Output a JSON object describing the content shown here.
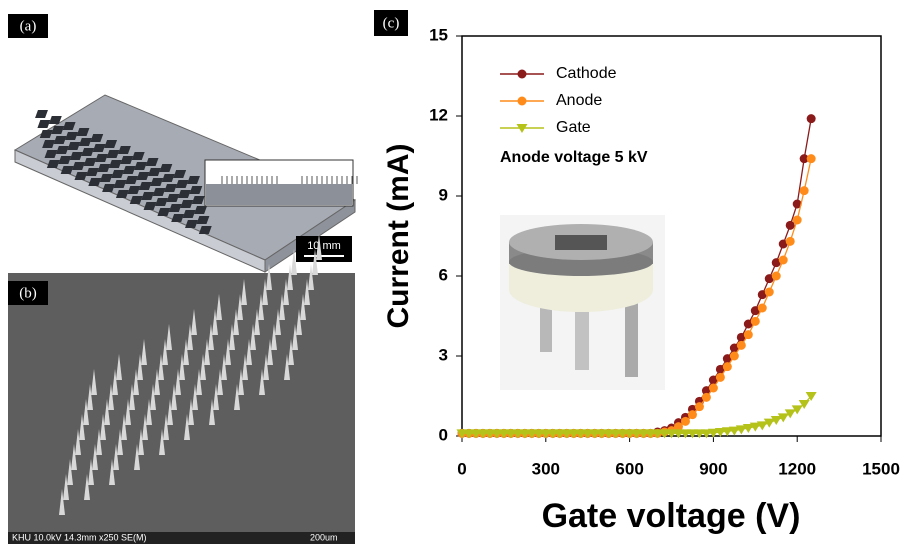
{
  "panels": {
    "a_label": "(a)",
    "b_label": "(b)",
    "c_label": "(c)",
    "scale_bar": "10 mm",
    "sem_info": "KHU 10.0kV 14.3mm x250 SE(M)",
    "sem_scale": "200um"
  },
  "chart_data": {
    "type": "line",
    "x_label": "Gate voltage (V)",
    "y_label": "Current (mA)",
    "annotation": "Anode voltage 5 kV",
    "xlim": [
      0,
      1500
    ],
    "xticks": [
      0,
      300,
      600,
      900,
      1200,
      1500
    ],
    "ylim": [
      0,
      15
    ],
    "yticks": [
      0,
      3,
      6,
      9,
      12,
      15
    ],
    "legend": "upper left",
    "x": [
      0,
      25,
      50,
      75,
      100,
      125,
      150,
      175,
      200,
      225,
      250,
      275,
      300,
      325,
      350,
      375,
      400,
      425,
      450,
      475,
      500,
      525,
      550,
      575,
      600,
      625,
      650,
      675,
      700,
      725,
      750,
      775,
      800,
      825,
      850,
      875,
      900,
      925,
      950,
      975,
      1000,
      1025,
      1050,
      1075,
      1100,
      1125,
      1150,
      1175,
      1200,
      1225,
      1250
    ],
    "series": [
      {
        "name": "Cathode",
        "color": "#8b1a1a",
        "marker": "circle",
        "values": [
          0.1,
          0.1,
          0.1,
          0.1,
          0.1,
          0.1,
          0.1,
          0.1,
          0.1,
          0.1,
          0.1,
          0.1,
          0.1,
          0.1,
          0.1,
          0.1,
          0.1,
          0.1,
          0.1,
          0.1,
          0.1,
          0.1,
          0.1,
          0.1,
          0.1,
          0.1,
          0.1,
          0.1,
          0.15,
          0.2,
          0.3,
          0.5,
          0.7,
          1.0,
          1.3,
          1.7,
          2.1,
          2.5,
          2.9,
          3.3,
          3.7,
          4.2,
          4.7,
          5.3,
          5.9,
          6.5,
          7.2,
          7.9,
          8.7,
          10.4,
          11.9
        ]
      },
      {
        "name": "Anode",
        "color": "#ff8c1a",
        "marker": "circle",
        "values": [
          0.1,
          0.1,
          0.1,
          0.1,
          0.1,
          0.1,
          0.1,
          0.1,
          0.1,
          0.1,
          0.1,
          0.1,
          0.1,
          0.1,
          0.1,
          0.1,
          0.1,
          0.1,
          0.1,
          0.1,
          0.1,
          0.1,
          0.1,
          0.1,
          0.1,
          0.1,
          0.1,
          0.1,
          0.1,
          0.15,
          0.2,
          0.35,
          0.55,
          0.8,
          1.1,
          1.45,
          1.8,
          2.2,
          2.6,
          3.0,
          3.4,
          3.8,
          4.3,
          4.8,
          5.4,
          6.0,
          6.6,
          7.3,
          8.1,
          9.2,
          10.4
        ]
      },
      {
        "name": "Gate",
        "color": "#b5c21a",
        "marker": "triangle-down",
        "values": [
          0.1,
          0.1,
          0.1,
          0.1,
          0.1,
          0.1,
          0.1,
          0.1,
          0.1,
          0.1,
          0.1,
          0.1,
          0.1,
          0.1,
          0.1,
          0.1,
          0.1,
          0.1,
          0.1,
          0.1,
          0.1,
          0.1,
          0.1,
          0.1,
          0.1,
          0.1,
          0.1,
          0.1,
          0.1,
          0.1,
          0.1,
          0.1,
          0.1,
          0.1,
          0.1,
          0.1,
          0.12,
          0.15,
          0.18,
          0.2,
          0.25,
          0.3,
          0.35,
          0.4,
          0.5,
          0.6,
          0.7,
          0.85,
          1.0,
          1.2,
          1.5
        ]
      }
    ]
  }
}
